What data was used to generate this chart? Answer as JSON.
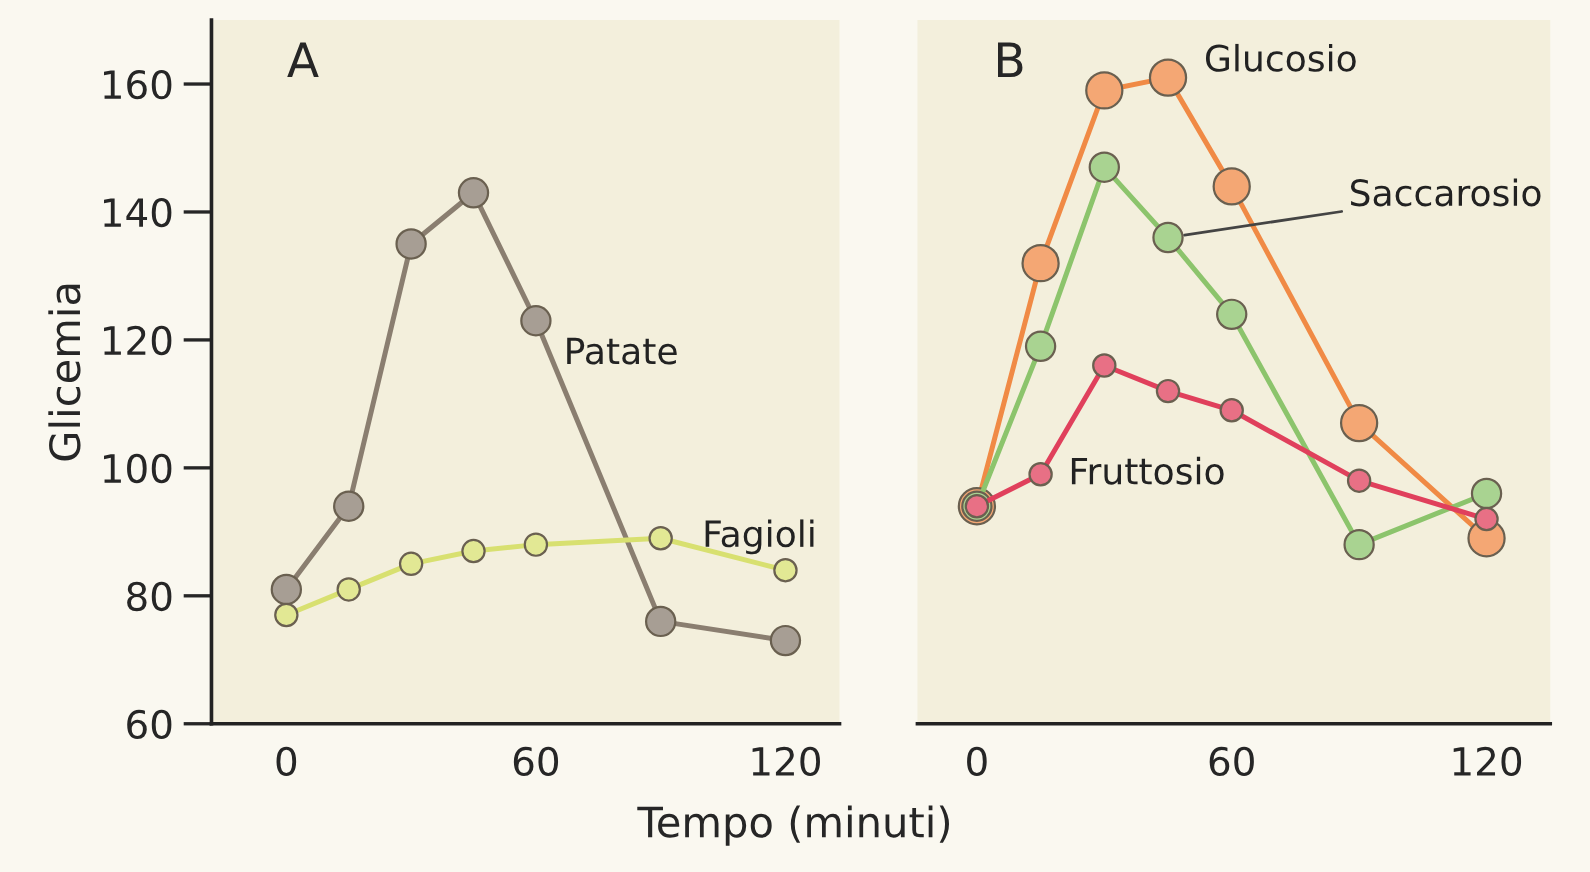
{
  "chart_data": [
    {
      "type": "line",
      "title": "A",
      "xlabel": "Tempo (minuti)",
      "ylabel": "Glicemia",
      "x": [
        0,
        15,
        30,
        45,
        60,
        90,
        120
      ],
      "xlim": [
        -18,
        133
      ],
      "xticks": [
        0,
        60,
        120
      ],
      "ylim": [
        60,
        170
      ],
      "yticks": [
        60,
        80,
        100,
        120,
        140,
        160
      ],
      "grid": false,
      "legend": false,
      "marker": "circle",
      "line_style": "solid",
      "series": [
        {
          "name": "Patate",
          "color": "#8a7e70",
          "values": [
            81,
            94,
            135,
            143,
            123,
            76,
            73
          ]
        },
        {
          "name": "Fagioli",
          "color": "#d8e070",
          "values": [
            77,
            81,
            85,
            87,
            88,
            89,
            84
          ]
        }
      ]
    },
    {
      "type": "line",
      "title": "B",
      "x": [
        0,
        15,
        30,
        45,
        60,
        90,
        120
      ],
      "xlim": [
        -14,
        135
      ],
      "xticks": [
        0,
        60,
        120
      ],
      "ylim": [
        60,
        170
      ],
      "tick_labels": "x",
      "grid": false,
      "legend": false,
      "marker": "circle",
      "line_style": "solid",
      "series": [
        {
          "name": "Glucosio",
          "color": "#f08a45",
          "values": [
            94,
            132,
            159,
            161,
            144,
            107,
            89
          ]
        },
        {
          "name": "Saccarosio",
          "color": "#8cc46c",
          "values": [
            94,
            119,
            147,
            136,
            124,
            88,
            96
          ]
        },
        {
          "name": "Fruttosio",
          "color": "#e0405c",
          "values": [
            94,
            99,
            116,
            112,
            109,
            98,
            92
          ]
        }
      ]
    }
  ]
}
